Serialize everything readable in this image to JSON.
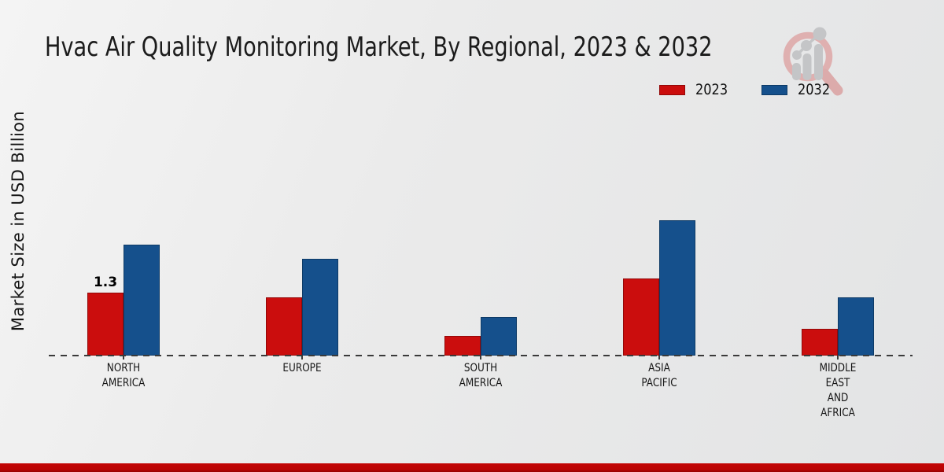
{
  "title": "Hvac Air Quality Monitoring Market, By Regional, 2023 & 2032",
  "y_axis_label": "Market Size in USD Billion",
  "legend": {
    "items": [
      {
        "label": "2023",
        "color": "#cb0d0d",
        "edge_color": "#930808"
      },
      {
        "label": "2032",
        "color": "#15508c",
        "edge_color": "#0d3a66"
      }
    ]
  },
  "watermark_icon": "magnifier-bar-chart-logo",
  "colors": {
    "background_start": "#f4f4f4",
    "background_end": "#e3e4e5",
    "baseline_dash": "#3a3a3a",
    "bottom_strip": "#bb0404",
    "text": "#1b1b1b"
  },
  "chart_data": {
    "type": "bar",
    "title": "Hvac Air Quality Monitoring Market, By Regional, 2023 & 2032",
    "ylabel": "Market Size in USD Billion",
    "categories": [
      "NORTH AMERICA",
      "EUROPE",
      "SOUTH AMERICA",
      "ASIA PACIFIC",
      "MIDDLE EAST AND AFRICA"
    ],
    "category_lines": [
      [
        "NORTH",
        "AMERICA"
      ],
      [
        "EUROPE"
      ],
      [
        "SOUTH",
        "AMERICA"
      ],
      [
        "ASIA",
        "PACIFIC"
      ],
      [
        "MIDDLE",
        "EAST",
        "AND",
        "AFRICA"
      ]
    ],
    "series": [
      {
        "name": "2023",
        "color": "#cb0d0d",
        "edge_color": "#930808",
        "values": [
          1.3,
          1.2,
          0.4,
          1.6,
          0.55
        ]
      },
      {
        "name": "2032",
        "color": "#15508c",
        "edge_color": "#0d3a66",
        "values": [
          2.3,
          2.0,
          0.8,
          2.8,
          1.2
        ]
      }
    ],
    "bar_labels": [
      {
        "category_index": 0,
        "series_index": 0,
        "text": "1.3"
      }
    ],
    "ylim": [
      0,
      3.2
    ],
    "y_axis_ticks": "none",
    "grid": "off",
    "baseline_style": "dashed",
    "legend_position": "top-right"
  }
}
